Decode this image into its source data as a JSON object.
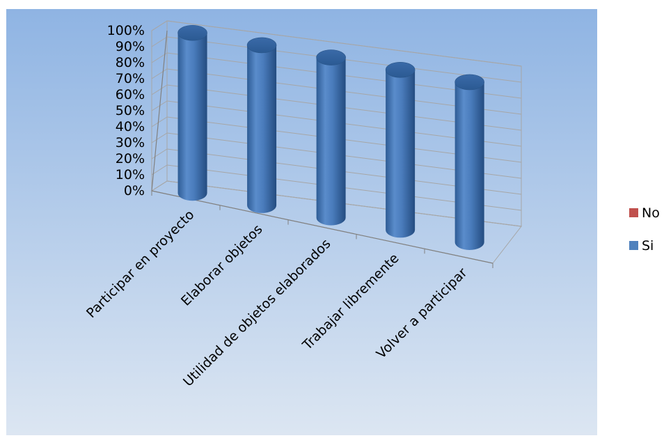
{
  "colors": {
    "si": "#4F81BD",
    "no": "#C0504D"
  },
  "chart_data": {
    "type": "bar",
    "style": "3d-cylinder",
    "categories": [
      "Participar en proyecto",
      "Elaborar objetos",
      "Utilidad de objetos elaborados",
      "Trabajar libremente",
      "Volver a participar"
    ],
    "series": [
      {
        "name": "No",
        "values": [
          0,
          0,
          0,
          0,
          0
        ]
      },
      {
        "name": "Si",
        "values": [
          100,
          100,
          100,
          100,
          100
        ]
      }
    ],
    "y_ticks": [
      "0%",
      "10%",
      "20%",
      "30%",
      "40%",
      "50%",
      "60%",
      "70%",
      "80%",
      "90%",
      "100%"
    ],
    "ylim": [
      0,
      100
    ],
    "grid": true,
    "legend": "right",
    "title": "",
    "xlabel": "",
    "ylabel": ""
  }
}
